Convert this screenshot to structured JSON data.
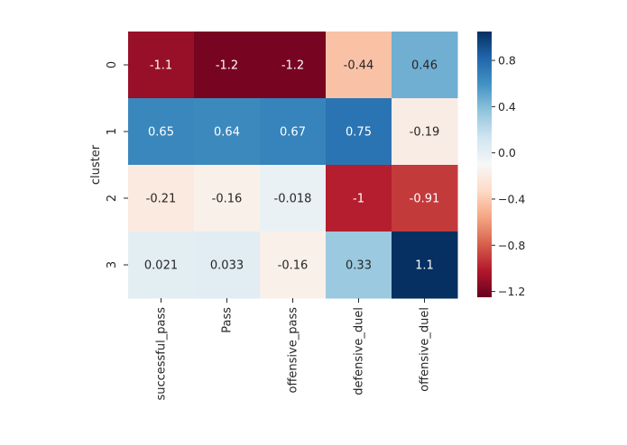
{
  "chart_data": {
    "type": "heatmap",
    "title": "",
    "xlabel": "",
    "ylabel": "cluster",
    "x_categories": [
      "successful_pass",
      "Pass",
      "offensive_pass",
      "defensive_duel",
      "offensive_duel"
    ],
    "y_categories": [
      "0",
      "1",
      "2",
      "3"
    ],
    "values": [
      [
        -1.1,
        -1.2,
        -1.2,
        -0.44,
        0.46
      ],
      [
        0.65,
        0.64,
        0.67,
        0.75,
        -0.19
      ],
      [
        -0.21,
        -0.16,
        -0.018,
        -1.0,
        -0.91
      ],
      [
        0.021,
        0.033,
        -0.16,
        0.33,
        1.1
      ]
    ],
    "cell_labels": [
      [
        "-1.1",
        "-1.2",
        "-1.2",
        "-0.44",
        "0.46"
      ],
      [
        "0.65",
        "0.64",
        "0.67",
        "0.75",
        "-0.19"
      ],
      [
        "-0.21",
        "-0.16",
        "-0.018",
        "-1",
        "-0.91"
      ],
      [
        "0.021",
        "0.033",
        "-0.16",
        "0.33",
        "1.1"
      ]
    ],
    "colormap": "RdBu",
    "vmin": -1.25,
    "vmax": 1.05,
    "colorbar_ticks": [
      0.8,
      0.4,
      0.0,
      -0.4,
      -0.8,
      -1.2
    ],
    "colorbar_tick_labels": [
      "0.8",
      "0.4",
      "0.0",
      "−0.4",
      "−0.8",
      "−1.2"
    ],
    "annotation_colors": {
      "light": "#ffffff",
      "dark": "#262626"
    }
  }
}
